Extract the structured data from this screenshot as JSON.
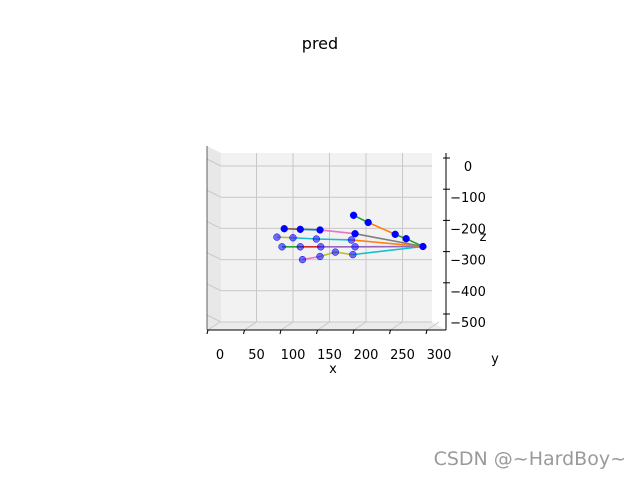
{
  "title": "pred",
  "watermark": "CSDN @~HardBoy~",
  "chart_data": {
    "type": "scatter",
    "projection": "3d",
    "title": "pred",
    "xlabel": "x",
    "ylabel": "y",
    "zlabel": "z",
    "x_ticks": [
      "0",
      "50",
      "100",
      "150",
      "200",
      "250",
      "300"
    ],
    "z_ticks": [
      "0",
      "100",
      "200",
      "300",
      "400",
      "500"
    ],
    "xlim": [
      -15,
      318
    ],
    "zlim": [
      -20,
      520
    ],
    "z_inverted": true,
    "grid": true,
    "marker_color": "#0000ff",
    "points": [
      {
        "x": 278,
        "z": 258
      },
      {
        "x": 255,
        "z": 233
      },
      {
        "x": 240,
        "z": 219
      },
      {
        "x": 203,
        "z": 181
      },
      {
        "x": 183,
        "z": 158
      },
      {
        "x": 182,
        "z": 284
      },
      {
        "x": 158,
        "z": 276
      },
      {
        "x": 137,
        "z": 290
      },
      {
        "x": 113,
        "z": 300
      },
      {
        "x": 185,
        "z": 259
      },
      {
        "x": 138,
        "z": 259
      },
      {
        "x": 110,
        "z": 259
      },
      {
        "x": 85,
        "z": 259
      },
      {
        "x": 180,
        "z": 237
      },
      {
        "x": 132,
        "z": 234
      },
      {
        "x": 100,
        "z": 230
      },
      {
        "x": 78,
        "z": 228
      },
      {
        "x": 185,
        "z": 217
      },
      {
        "x": 137,
        "z": 205
      },
      {
        "x": 110,
        "z": 203
      },
      {
        "x": 88,
        "z": 201
      }
    ],
    "bones": [
      {
        "from": 0,
        "to": 1,
        "color": "#2ca02c"
      },
      {
        "from": 1,
        "to": 2,
        "color": "#2ca02c"
      },
      {
        "from": 2,
        "to": 3,
        "color": "#ff7f0e"
      },
      {
        "from": 3,
        "to": 4,
        "color": "#2ca02c"
      },
      {
        "from": 0,
        "to": 5,
        "color": "#17becf"
      },
      {
        "from": 5,
        "to": 6,
        "color": "#bcbd22"
      },
      {
        "from": 6,
        "to": 7,
        "color": "#bcbd22"
      },
      {
        "from": 7,
        "to": 8,
        "color": "#e377c2"
      },
      {
        "from": 0,
        "to": 9,
        "color": "#9467bd"
      },
      {
        "from": 9,
        "to": 10,
        "color": "#9467bd"
      },
      {
        "from": 10,
        "to": 11,
        "color": "#d62728"
      },
      {
        "from": 11,
        "to": 12,
        "color": "#2ca02c"
      },
      {
        "from": 0,
        "to": 13,
        "color": "#ff7f0e"
      },
      {
        "from": 13,
        "to": 14,
        "color": "#17becf"
      },
      {
        "from": 14,
        "to": 15,
        "color": "#17becf"
      },
      {
        "from": 15,
        "to": 16,
        "color": "#bcbd22"
      },
      {
        "from": 0,
        "to": 17,
        "color": "#7f7f7f"
      },
      {
        "from": 17,
        "to": 18,
        "color": "#e377c2"
      },
      {
        "from": 18,
        "to": 19,
        "color": "#1f77b4"
      },
      {
        "from": 19,
        "to": 20,
        "color": "#8c564b"
      }
    ]
  }
}
